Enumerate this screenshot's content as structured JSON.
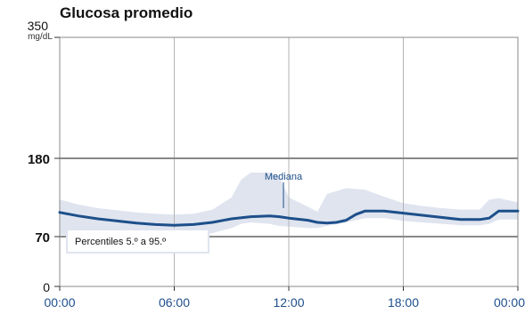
{
  "chart_data": {
    "type": "area",
    "title": "Glucosa promedio",
    "unit_label": "mg/dL",
    "ylim": [
      0,
      350
    ],
    "y_ticks": [
      {
        "value": 0,
        "label": "0"
      },
      {
        "value": 70,
        "label": "70"
      },
      {
        "value": 180,
        "label": "180"
      },
      {
        "value": 350,
        "label": "350"
      }
    ],
    "x_ticks": [
      "00:00",
      "06:00",
      "12:00",
      "18:00",
      "00:00"
    ],
    "x_hours": [
      0,
      6,
      12,
      18,
      24
    ],
    "target_range": [
      70,
      180
    ],
    "grid": true,
    "series": [
      {
        "name": "Mediana",
        "x": [
          0,
          1,
          2,
          3,
          4,
          5,
          6,
          7,
          8,
          9,
          10,
          11,
          11.5,
          12,
          13,
          13.5,
          14,
          14.5,
          15,
          15.5,
          16,
          17,
          18,
          19,
          20,
          21,
          22,
          22.5,
          23,
          24
        ],
        "values": [
          104,
          99,
          95,
          92,
          89,
          87,
          86,
          87,
          90,
          95,
          98,
          99,
          98,
          96,
          93,
          90,
          89,
          90,
          93,
          101,
          106,
          106,
          103,
          100,
          97,
          94,
          94,
          96,
          106,
          106
        ]
      },
      {
        "name": "Percentiles 5.º a 95.º",
        "x": [
          0,
          1,
          2,
          3,
          4,
          5,
          6,
          7,
          8,
          9,
          9.5,
          10,
          11,
          11.5,
          12,
          13,
          13.5,
          14,
          15,
          16,
          17,
          18,
          19,
          20,
          21,
          22,
          22.5,
          23,
          24
        ],
        "low": [
          72,
          72,
          72,
          71,
          71,
          70,
          70,
          71,
          75,
          82,
          88,
          90,
          88,
          85,
          84,
          82,
          82,
          85,
          90,
          96,
          96,
          92,
          90,
          88,
          86,
          86,
          88,
          94,
          94
        ],
        "high": [
          122,
          115,
          110,
          107,
          104,
          102,
          101,
          102,
          108,
          125,
          150,
          160,
          160,
          155,
          125,
          112,
          105,
          130,
          138,
          136,
          126,
          117,
          113,
          110,
          108,
          108,
          122,
          124,
          118
        ]
      }
    ],
    "annotations": {
      "median_label": "Mediana",
      "percentile_label": "Percentiles 5.º a 95.º"
    },
    "colors": {
      "median_line": "#1d4f8a",
      "band_fill": "#dfe4ef",
      "target_line": "#888888",
      "grid": "#b3b3b3",
      "tick_x": "#1e4f8c"
    }
  }
}
